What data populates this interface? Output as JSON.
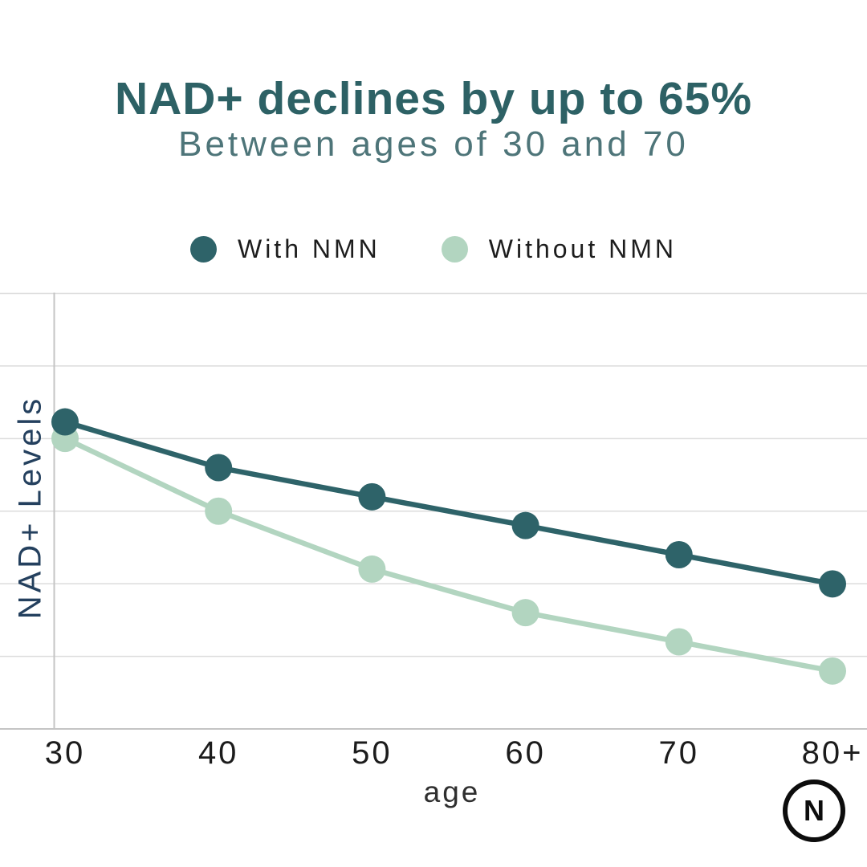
{
  "header": {
    "title": "NAD+ declines by up to 65%",
    "subtitle": "Between ages of 30 and 70"
  },
  "chart_data": {
    "type": "line",
    "categories": [
      "30",
      "40",
      "50",
      "60",
      "70",
      "80+"
    ],
    "series": [
      {
        "name": "With NMN",
        "color": "#2e6369",
        "values": [
          70.5,
          60.0,
          53.3,
          46.7,
          40.0,
          33.3
        ]
      },
      {
        "name": "Without NMN",
        "color": "#b2d5c0",
        "values": [
          66.7,
          50.0,
          36.7,
          26.7,
          20.0,
          13.3
        ]
      }
    ],
    "xlabel": "age",
    "ylabel": "NAD+ Levels",
    "ylim": [
      0,
      100
    ],
    "gridline_step": 16.67,
    "grid": "horizontal",
    "legend_position": "top",
    "marker": "circle"
  },
  "colors": {
    "title": "#2d6165",
    "subtitle": "#4e7579",
    "with_nmn": "#2e6369",
    "without_nmn": "#b2d5c0",
    "gridline": "#dcdcdc",
    "axis_line": "#c4c4c4",
    "y_axis_title": "#24405e",
    "tick_text": "#1c1c1c"
  },
  "logo": {
    "letter": "N"
  }
}
